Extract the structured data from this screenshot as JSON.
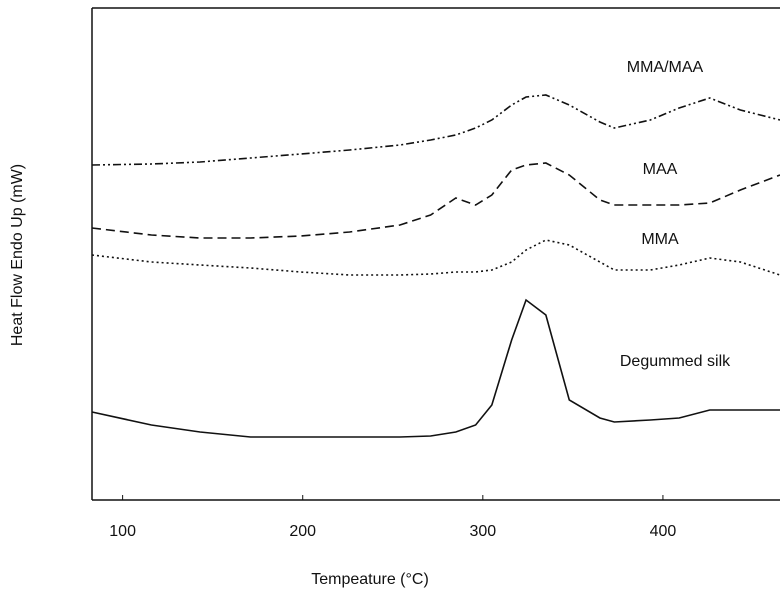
{
  "chart_data": {
    "type": "line",
    "xlabel": "Tempeature (°C)",
    "ylabel": "Heat Flow Endo Up (mW)",
    "x": [
      83,
      116,
      143,
      171,
      199,
      226,
      254,
      271,
      285,
      296,
      305,
      316,
      324,
      335,
      348,
      365,
      373,
      393,
      409,
      426,
      443,
      465
    ],
    "series": [
      {
        "name": "MMA/MAA",
        "color": "#111111",
        "linestyle": "dashdotdot",
        "values": [
          335,
          336,
          338,
          342,
          346,
          350,
          355,
          360,
          365,
          372,
          380,
          395,
          403,
          405,
          395,
          378,
          372,
          380,
          392,
          402,
          390,
          380
        ]
      },
      {
        "name": "MAA",
        "color": "#111111",
        "linestyle": "dashed",
        "values": [
          272,
          265,
          262,
          262,
          264,
          268,
          275,
          285,
          302,
          295,
          305,
          330,
          335,
          337,
          325,
          300,
          295,
          295,
          295,
          297,
          310,
          325
        ]
      },
      {
        "name": "MMA",
        "color": "#111111",
        "linestyle": "dotted",
        "values": [
          245,
          238,
          235,
          232,
          228,
          225,
          225,
          226,
          228,
          228,
          230,
          238,
          250,
          260,
          255,
          238,
          230,
          230,
          235,
          242,
          238,
          225
        ]
      },
      {
        "name": "Degummed silk",
        "color": "#111111",
        "linestyle": "solid",
        "values": [
          88,
          75,
          68,
          63,
          63,
          63,
          63,
          64,
          68,
          75,
          95,
          160,
          200,
          185,
          100,
          82,
          78,
          80,
          82,
          90,
          90,
          90
        ]
      }
    ],
    "xlim": [
      83,
      465
    ],
    "xticks": [
      100,
      200,
      300,
      400
    ],
    "ylim": [
      0,
      492
    ]
  }
}
